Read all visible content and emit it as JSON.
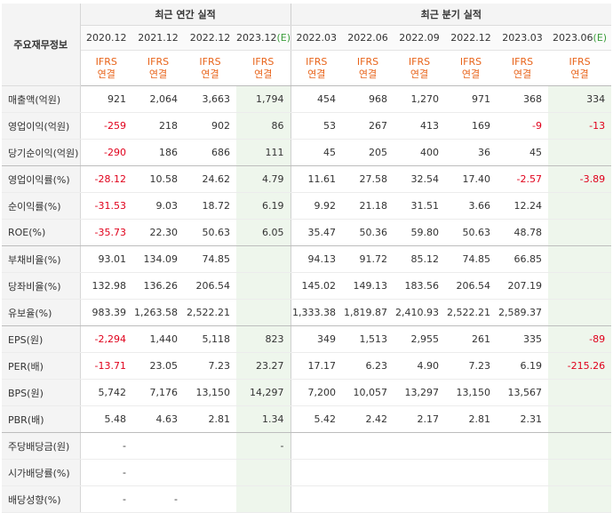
{
  "table": {
    "corner_label": "주요재무정보",
    "groups": {
      "annual": "최근 연간 실적",
      "quarterly": "최근 분기 실적"
    },
    "annual_periods": [
      "2020.12",
      "2021.12",
      "2022.12",
      "2023.12"
    ],
    "annual_est_tag": "(E)",
    "quarter_periods": [
      "2022.03",
      "2022.06",
      "2022.09",
      "2022.12",
      "2023.03",
      "2023.06"
    ],
    "quarter_est_tag": "(E)",
    "ifrs_line1": "IFRS",
    "ifrs_line2": "연결",
    "rows": [
      {
        "label": "매출액(억원)",
        "values": [
          "921",
          "2,064",
          "3,663",
          "1,794",
          "454",
          "968",
          "1,270",
          "971",
          "368",
          "334"
        ]
      },
      {
        "label": "영업이익(억원)",
        "values": [
          "-259",
          "218",
          "902",
          "86",
          "53",
          "267",
          "413",
          "169",
          "-9",
          "-13"
        ]
      },
      {
        "label": "당기순이익(억원)",
        "values": [
          "-290",
          "186",
          "686",
          "111",
          "45",
          "205",
          "400",
          "36",
          "45",
          ""
        ]
      },
      {
        "label": "영업이익률(%)",
        "values": [
          "-28.12",
          "10.58",
          "24.62",
          "4.79",
          "11.61",
          "27.58",
          "32.54",
          "17.40",
          "-2.57",
          "-3.89"
        ]
      },
      {
        "label": "순이익률(%)",
        "values": [
          "-31.53",
          "9.03",
          "18.72",
          "6.19",
          "9.92",
          "21.18",
          "31.51",
          "3.66",
          "12.24",
          ""
        ]
      },
      {
        "label": "ROE(%)",
        "values": [
          "-35.73",
          "22.30",
          "50.63",
          "6.05",
          "35.47",
          "50.36",
          "59.80",
          "50.63",
          "48.78",
          ""
        ]
      },
      {
        "label": "부채비율(%)",
        "values": [
          "93.01",
          "134.09",
          "74.85",
          "",
          "94.13",
          "91.72",
          "85.12",
          "74.85",
          "66.85",
          ""
        ]
      },
      {
        "label": "당좌비율(%)",
        "values": [
          "132.98",
          "136.26",
          "206.54",
          "",
          "145.02",
          "149.13",
          "183.56",
          "206.54",
          "207.19",
          ""
        ]
      },
      {
        "label": "유보율(%)",
        "values": [
          "983.39",
          "1,263.58",
          "2,522.21",
          "",
          "1,333.38",
          "1,819.87",
          "2,410.93",
          "2,522.21",
          "2,589.37",
          ""
        ]
      },
      {
        "label": "EPS(원)",
        "values": [
          "-2,294",
          "1,440",
          "5,118",
          "823",
          "349",
          "1,513",
          "2,955",
          "261",
          "335",
          "-89"
        ]
      },
      {
        "label": "PER(배)",
        "values": [
          "-13.71",
          "23.05",
          "7.23",
          "23.27",
          "17.17",
          "6.23",
          "4.90",
          "7.23",
          "6.19",
          "-215.26"
        ]
      },
      {
        "label": "BPS(원)",
        "values": [
          "5,742",
          "7,176",
          "13,150",
          "14,297",
          "7,200",
          "10,057",
          "13,297",
          "13,150",
          "13,567",
          ""
        ]
      },
      {
        "label": "PBR(배)",
        "values": [
          "5.48",
          "4.63",
          "2.81",
          "1.34",
          "5.42",
          "2.42",
          "2.17",
          "2.81",
          "2.31",
          ""
        ]
      },
      {
        "label": "주당배당금(원)",
        "values": [
          "-",
          "",
          "",
          "-",
          "",
          "",
          "",
          "",
          "",
          ""
        ]
      },
      {
        "label": "시가배당률(%)",
        "values": [
          "-",
          "",
          "",
          "",
          "",
          "",
          "",
          "",
          "",
          ""
        ]
      },
      {
        "label": "배당성향(%)",
        "values": [
          "-",
          "-",
          "",
          "",
          "",
          "",
          "",
          "",
          "",
          ""
        ]
      }
    ]
  },
  "colors": {
    "negative": "#e0001b",
    "ifrs": "#e8641b",
    "estimate_bg": "#eef6ec"
  }
}
